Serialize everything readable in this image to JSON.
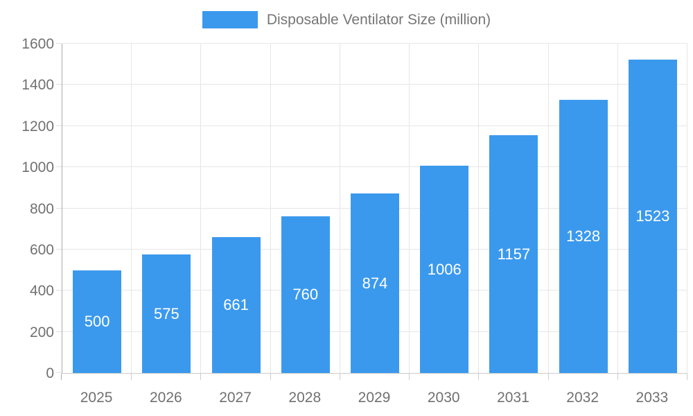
{
  "legend": {
    "label": "Disposable Ventilator Size (million)"
  },
  "chart_data": {
    "type": "bar",
    "title": "",
    "series_name": "Disposable Ventilator Size (million)",
    "categories": [
      "2025",
      "2026",
      "2027",
      "2028",
      "2029",
      "2030",
      "2031",
      "2032",
      "2033"
    ],
    "values": [
      500,
      575,
      661,
      760,
      874,
      1006,
      1157,
      1328,
      1523
    ],
    "bar_labels": [
      "500",
      "575",
      "661",
      "760",
      "874",
      "1006",
      "1157",
      "1328",
      "1523"
    ],
    "xlabel": "",
    "ylabel": "",
    "ylim": [
      0,
      1600
    ],
    "y_ticks": [
      0,
      200,
      400,
      600,
      800,
      1000,
      1200,
      1400,
      1600
    ],
    "y_tick_labels": [
      "0",
      "200",
      "400",
      "600",
      "800",
      "1000",
      "1200",
      "1400",
      "1600"
    ],
    "grid": true,
    "legend_position": "top-center",
    "colors": {
      "bar": "#3b99ed",
      "bar_label_text": "#ffffff",
      "axis_text": "#707070",
      "legend_text": "#757575",
      "gridline": "#e6e6e6",
      "y_axis_line": "#aaaaaa",
      "x_axis_line": "#cccccc",
      "y_tick_mark": "#e0e0e0",
      "x_tick_mark": "#cccccc",
      "background": "#ffffff"
    }
  }
}
